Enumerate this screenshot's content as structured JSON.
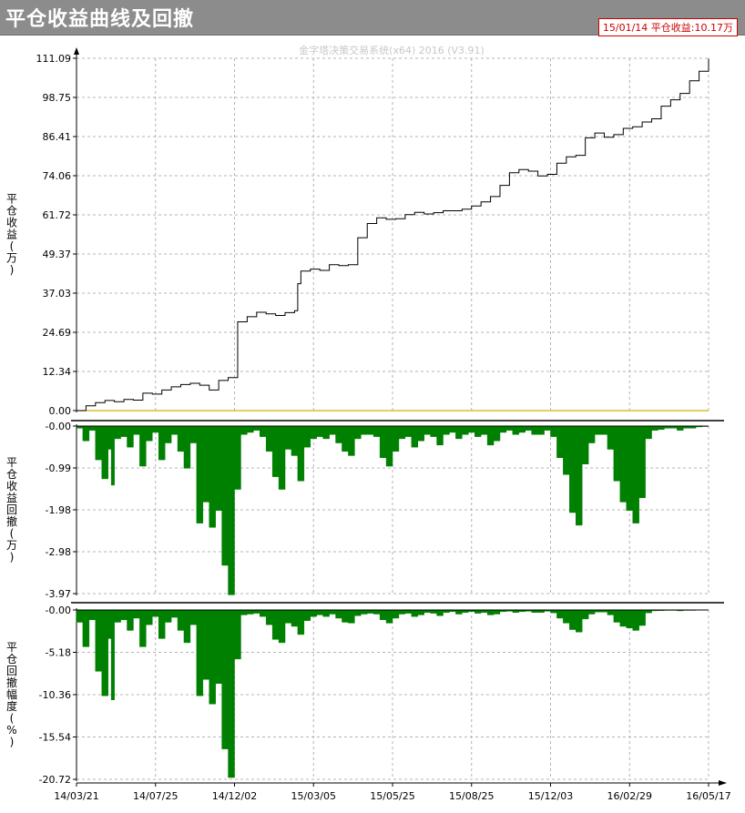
{
  "window": {
    "title": "平仓收益曲线及回撤",
    "badge": "15/01/14 平仓收益:10.17万",
    "watermark": "金字塔决策交易系统(x64) 2016 (V3.91)"
  },
  "colors": {
    "curve": "#000000",
    "zero_line": "#d4b400",
    "drawdown_fill": "#008000",
    "grid": "#b4b4b4",
    "badge": "#cc0000"
  },
  "chart_data": [
    {
      "type": "line",
      "ylabel": "平仓收益(万)",
      "y_ticks": [
        "111.09",
        "98.75",
        "86.41",
        "74.06",
        "61.72",
        "49.37",
        "37.03",
        "24.69",
        "12.34",
        "0.00"
      ],
      "ylim": [
        0,
        111.09
      ],
      "series": [
        {
          "x": [
            0,
            1.5,
            3,
            4.5,
            6,
            7.5,
            9,
            10.5,
            12,
            13.5,
            15,
            16.5,
            18,
            19.5,
            21,
            22.5,
            24,
            25.5,
            27,
            28.5,
            30,
            31.5,
            33,
            34.5,
            35,
            35.5,
            37,
            38.5,
            40,
            41.5,
            43,
            44.5,
            46,
            47.5,
            49,
            50.5,
            52,
            53.5,
            55,
            56.5,
            58,
            59.5,
            61,
            62.5,
            64,
            65.5,
            67,
            68.5,
            70,
            71.5,
            73,
            74.5,
            76,
            77.5,
            79,
            80.5,
            82,
            83.5,
            85,
            86.5,
            88,
            89.5,
            91,
            92.5,
            94,
            95.5,
            97,
            98.5,
            100
          ],
          "y": [
            0,
            1.5,
            2.5,
            3.2,
            2.8,
            3.5,
            3.3,
            5.5,
            5.2,
            6.5,
            7.5,
            8.2,
            8.6,
            8.0,
            6.5,
            9.5,
            10.4,
            28.0,
            29.6,
            31.0,
            30.5,
            30.0,
            30.9,
            31.5,
            40.0,
            44.0,
            44.6,
            44.2,
            46.0,
            45.7,
            46.0,
            54.5,
            59.0,
            60.8,
            60.3,
            60.5,
            61.8,
            62.5,
            62.0,
            62.4,
            63.0,
            63.0,
            63.5,
            64.5,
            65.8,
            67.5,
            71.0,
            75.0,
            76.0,
            75.5,
            74.0,
            74.5,
            78.0,
            80.0,
            80.5,
            86.0,
            87.5,
            86.2,
            87.0,
            89.0,
            89.5,
            91.0,
            92.0,
            96.0,
            98.0,
            100.0,
            104.0,
            107.0,
            111.0
          ]
        }
      ]
    },
    {
      "type": "area",
      "ylabel": "平仓收益回撤(万)",
      "y_ticks": [
        "-0.00",
        "-0.99",
        "-1.98",
        "-2.98",
        "-3.97"
      ],
      "ylim": [
        -3.97,
        0
      ],
      "series": [
        {
          "x": [
            0,
            1,
            2,
            3,
            4,
            5,
            5.5,
            6,
            7,
            8,
            9,
            10,
            11,
            12,
            13,
            14,
            15,
            16,
            17,
            18,
            19,
            20,
            21,
            22,
            23,
            24,
            25,
            26,
            27,
            28,
            29,
            30,
            31,
            32,
            33,
            34,
            35,
            36,
            37,
            38,
            39,
            40,
            41,
            42,
            43,
            44,
            45,
            46,
            47,
            48,
            49,
            50,
            51,
            52,
            53,
            54,
            55,
            56,
            57,
            58,
            59,
            60,
            61,
            62,
            63,
            64,
            65,
            66,
            67,
            68,
            69,
            70,
            71,
            72,
            73,
            74,
            75,
            76,
            77,
            78,
            79,
            80,
            81,
            82,
            83,
            84,
            85,
            86,
            87,
            88,
            89,
            90,
            91,
            92,
            93,
            94,
            95,
            96,
            97,
            98,
            99,
            100
          ],
          "y": [
            -0.05,
            -0.35,
            -0.1,
            -0.8,
            -1.25,
            -0.55,
            -1.4,
            -0.3,
            -0.25,
            -0.5,
            -0.2,
            -0.95,
            -0.35,
            -0.15,
            -0.8,
            -0.4,
            -0.2,
            -0.6,
            -1.0,
            -0.4,
            -2.3,
            -1.8,
            -2.4,
            -2.0,
            -3.3,
            -4.0,
            -1.5,
            -0.2,
            -0.15,
            -0.1,
            -0.25,
            -0.6,
            -1.2,
            -1.5,
            -0.55,
            -0.7,
            -1.3,
            -0.5,
            -0.3,
            -0.25,
            -0.3,
            -0.2,
            -0.4,
            -0.6,
            -0.7,
            -0.3,
            -0.2,
            -0.2,
            -0.25,
            -0.75,
            -0.95,
            -0.6,
            -0.3,
            -0.25,
            -0.5,
            -0.35,
            -0.2,
            -0.25,
            -0.45,
            -0.2,
            -0.15,
            -0.3,
            -0.2,
            -0.15,
            -0.25,
            -0.2,
            -0.45,
            -0.35,
            -0.15,
            -0.1,
            -0.2,
            -0.15,
            -0.1,
            -0.2,
            -0.2,
            -0.1,
            -0.25,
            -0.75,
            -1.15,
            -2.05,
            -2.35,
            -0.9,
            -0.4,
            -0.2,
            -0.2,
            -0.55,
            -1.3,
            -1.8,
            -2.0,
            -2.3,
            -1.7,
            -0.3,
            -0.1,
            -0.08,
            -0.05,
            -0.05,
            -0.1,
            -0.05,
            -0.05,
            -0.02,
            -0.01,
            0
          ]
        }
      ]
    },
    {
      "type": "area",
      "ylabel": "平仓回撤幅度(%)",
      "y_ticks": [
        "-0.00",
        "-5.18",
        "-10.36",
        "-15.54",
        "-20.72"
      ],
      "ylim": [
        -20.72,
        0
      ],
      "x_ticks": [
        "14/03/21",
        "14/07/25",
        "14/12/02",
        "15/03/05",
        "15/05/25",
        "15/08/25",
        "15/12/03",
        "16/02/29",
        "16/05/17"
      ],
      "series": [
        {
          "x": [
            0,
            1,
            2,
            3,
            4,
            5,
            5.5,
            6,
            7,
            8,
            9,
            10,
            11,
            12,
            13,
            14,
            15,
            16,
            17,
            18,
            19,
            20,
            21,
            22,
            23,
            24,
            25,
            26,
            27,
            28,
            29,
            30,
            31,
            32,
            33,
            34,
            35,
            36,
            37,
            38,
            39,
            40,
            41,
            42,
            43,
            44,
            45,
            46,
            47,
            48,
            49,
            50,
            51,
            52,
            53,
            54,
            55,
            56,
            57,
            58,
            59,
            60,
            61,
            62,
            63,
            64,
            65,
            66,
            67,
            68,
            69,
            70,
            71,
            72,
            73,
            74,
            75,
            76,
            77,
            78,
            79,
            80,
            81,
            82,
            83,
            84,
            85,
            86,
            87,
            88,
            89,
            90,
            91,
            92,
            93,
            94,
            95,
            96,
            97,
            98,
            99,
            100
          ],
          "y": [
            -1.5,
            -4.5,
            -1.2,
            -7.5,
            -10.5,
            -3.5,
            -11.0,
            -1.5,
            -1.2,
            -2.5,
            -1.0,
            -4.5,
            -1.8,
            -0.8,
            -3.5,
            -1.5,
            -0.9,
            -2.5,
            -4.0,
            -1.8,
            -10.5,
            -8.5,
            -11.5,
            -9.0,
            -17.0,
            -20.5,
            -6.0,
            -0.6,
            -0.5,
            -0.4,
            -0.8,
            -1.8,
            -3.6,
            -4.0,
            -1.6,
            -2.0,
            -3.0,
            -1.3,
            -0.8,
            -0.6,
            -0.8,
            -0.5,
            -1.0,
            -1.5,
            -1.6,
            -0.7,
            -0.5,
            -0.4,
            -0.5,
            -1.2,
            -1.6,
            -1.0,
            -0.5,
            -0.4,
            -0.8,
            -0.6,
            -0.3,
            -0.4,
            -0.7,
            -0.3,
            -0.2,
            -0.5,
            -0.3,
            -0.2,
            -0.4,
            -0.3,
            -0.6,
            -0.5,
            -0.2,
            -0.15,
            -0.3,
            -0.2,
            -0.15,
            -0.3,
            -0.3,
            -0.15,
            -0.35,
            -1.0,
            -1.6,
            -2.4,
            -2.7,
            -1.1,
            -0.5,
            -0.25,
            -0.25,
            -0.6,
            -1.5,
            -2.0,
            -2.2,
            -2.5,
            -1.9,
            -0.35,
            -0.1,
            -0.08,
            -0.05,
            -0.05,
            -0.1,
            -0.05,
            -0.05,
            -0.02,
            -0.01,
            0
          ]
        }
      ]
    }
  ]
}
